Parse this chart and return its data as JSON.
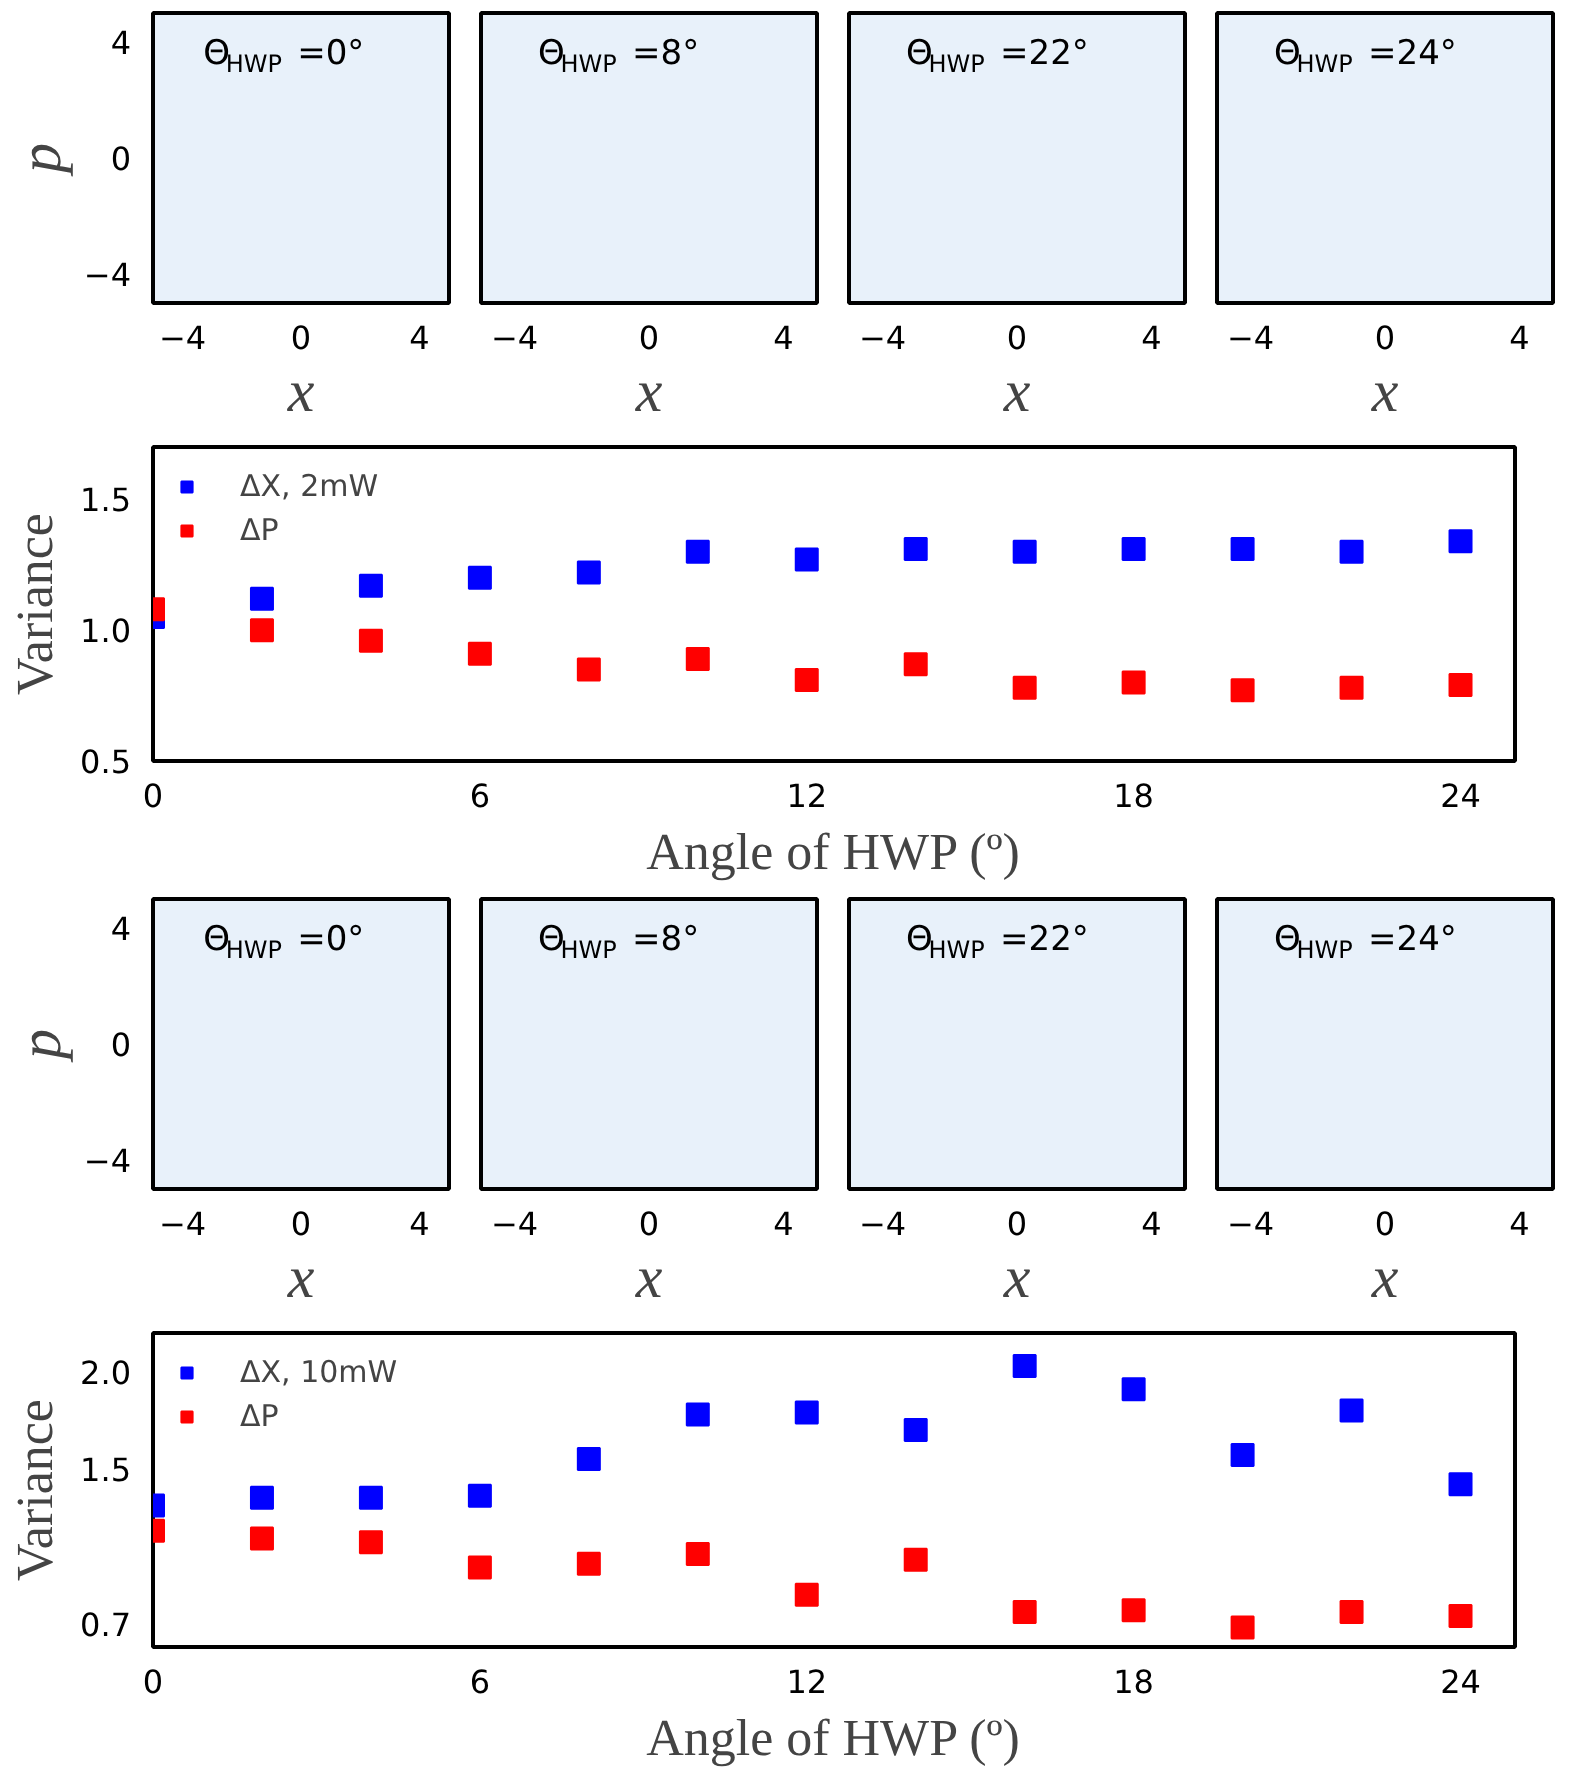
{
  "chart_data": [
    {
      "type": "scatter",
      "title": "Θ$_{HWP}$ =0°",
      "xlabel": "x",
      "ylabel": "p",
      "xlim": [
        -5,
        5
      ],
      "ylim": [
        -5,
        5
      ],
      "xticks": [
        -4,
        0,
        4
      ],
      "yticks": [
        -4,
        0,
        4
      ]
    },
    {
      "type": "scatter",
      "title": "Θ$_{HWP}$ =8°",
      "xlabel": "x",
      "xlim": [
        -5,
        5
      ],
      "ylim": [
        -5,
        5
      ],
      "xticks": [
        -4,
        0,
        4
      ],
      "tick_labels": "x"
    },
    {
      "type": "scatter",
      "title": "Θ$_{HWP}$ =22°",
      "xlabel": "x",
      "xlim": [
        -5,
        5
      ],
      "ylim": [
        -5,
        5
      ],
      "xticks": [
        -4,
        0,
        4
      ],
      "tick_labels": "x"
    },
    {
      "type": "scatter",
      "title": "Θ$_{HWP}$ =24°",
      "xlabel": "x",
      "xlim": [
        -5,
        5
      ],
      "ylim": [
        -5,
        5
      ],
      "xticks": [
        -4,
        0,
        4
      ],
      "tick_labels": "x"
    },
    {
      "type": "scatter",
      "xlabel": "Angle of HWP (º)",
      "ylabel": "Variance",
      "x": [
        0,
        2,
        4,
        6,
        8,
        10,
        12,
        14,
        16,
        18,
        20,
        22,
        24
      ],
      "xlim": [
        0,
        25
      ],
      "ylim": [
        0.5,
        1.7
      ],
      "xticks": [
        0,
        6,
        12,
        18,
        24
      ],
      "yticks": [
        0.5,
        {
          "value": 1,
          "label": "1.0"
        },
        1.5
      ],
      "marker": "square",
      "legend": "top left",
      "grid": false,
      "series": [
        {
          "name": "ΔX, 2mW",
          "color": "#0000ff",
          "values": [
            1.05,
            1.12,
            1.17,
            1.2,
            1.22,
            1.3,
            1.27,
            1.31,
            1.3,
            1.31,
            1.31,
            1.3,
            1.34
          ]
        },
        {
          "name": "ΔP",
          "color": "#ff0000",
          "values": [
            1.08,
            1.0,
            0.96,
            0.91,
            0.85,
            0.89,
            0.81,
            0.87,
            0.78,
            0.8,
            0.77,
            0.78,
            0.79
          ]
        }
      ]
    },
    {
      "type": "scatter",
      "title": "Θ$_{HWP}$ =0°",
      "xlabel": "x",
      "ylabel": "p",
      "xlim": [
        -5,
        5
      ],
      "ylim": [
        -5,
        5
      ],
      "xticks": [
        -4,
        0,
        4
      ],
      "yticks": [
        -4,
        0,
        4
      ]
    },
    {
      "type": "scatter",
      "title": "Θ$_{HWP}$ =8°",
      "xlabel": "x",
      "xlim": [
        -5,
        5
      ],
      "ylim": [
        -5,
        5
      ],
      "xticks": [
        -4,
        0,
        4
      ],
      "tick_labels": "x"
    },
    {
      "type": "scatter",
      "title": "Θ$_{HWP}$ =22°",
      "xlabel": "x",
      "xlim": [
        -5,
        5
      ],
      "ylim": [
        -5,
        5
      ],
      "xticks": [
        -4,
        0,
        4
      ],
      "tick_labels": "x"
    },
    {
      "type": "scatter",
      "title": "Θ$_{HWP}$ =24°",
      "xlabel": "x",
      "xlim": [
        -5,
        5
      ],
      "ylim": [
        -5,
        5
      ],
      "xticks": [
        -4,
        0,
        4
      ],
      "tick_labels": "x"
    },
    {
      "type": "scatter",
      "xlabel": "Angle of HWP (º)",
      "ylabel": "Variance",
      "x": [
        0,
        2,
        4,
        6,
        8,
        10,
        12,
        14,
        16,
        18,
        20,
        22,
        24
      ],
      "xlim": [
        0,
        25
      ],
      "ylim": [
        0.58,
        2.2
      ],
      "xticks": [
        0,
        6,
        12,
        18,
        24
      ],
      "yticks": [
        0.7,
        1.5,
        {
          "value": 2,
          "label": "2.0"
        }
      ],
      "marker": "square",
      "legend": "top left",
      "grid": false,
      "series": [
        {
          "name": "ΔX, 10mW",
          "color": "#0000ff",
          "values": [
            1.31,
            1.35,
            1.35,
            1.36,
            1.55,
            1.78,
            1.79,
            1.7,
            2.03,
            1.91,
            1.57,
            1.8,
            1.42
          ]
        },
        {
          "name": "ΔP",
          "color": "#ff0000",
          "values": [
            1.18,
            1.14,
            1.12,
            0.99,
            1.01,
            1.06,
            0.85,
            1.03,
            0.76,
            0.77,
            0.68,
            0.76,
            0.74
          ]
        }
      ]
    }
  ]
}
